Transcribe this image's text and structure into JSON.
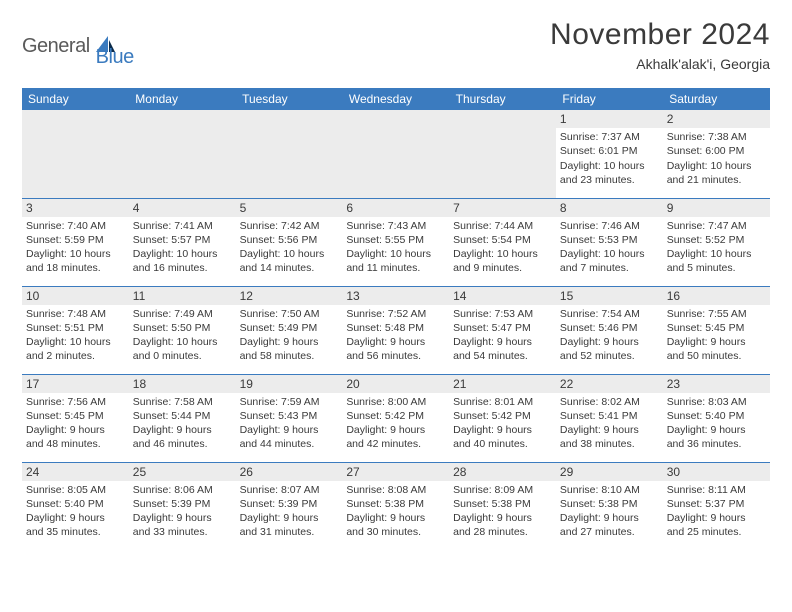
{
  "logo": {
    "text_general": "General",
    "text_blue": "Blue"
  },
  "header": {
    "title": "November 2024",
    "location": "Akhalk'alak'i, Georgia"
  },
  "colors": {
    "header_bg": "#3b7bbf",
    "header_text": "#ffffff",
    "daybar_bg": "#ececec",
    "text": "#3a3a3a",
    "rule": "#3b7bbf"
  },
  "daysOfWeek": [
    "Sunday",
    "Monday",
    "Tuesday",
    "Wednesday",
    "Thursday",
    "Friday",
    "Saturday"
  ],
  "weeks": [
    [
      null,
      null,
      null,
      null,
      null,
      {
        "n": "1",
        "sr": "7:37 AM",
        "ss": "6:01 PM",
        "dl": "10 hours and 23 minutes."
      },
      {
        "n": "2",
        "sr": "7:38 AM",
        "ss": "6:00 PM",
        "dl": "10 hours and 21 minutes."
      }
    ],
    [
      {
        "n": "3",
        "sr": "7:40 AM",
        "ss": "5:59 PM",
        "dl": "10 hours and 18 minutes."
      },
      {
        "n": "4",
        "sr": "7:41 AM",
        "ss": "5:57 PM",
        "dl": "10 hours and 16 minutes."
      },
      {
        "n": "5",
        "sr": "7:42 AM",
        "ss": "5:56 PM",
        "dl": "10 hours and 14 minutes."
      },
      {
        "n": "6",
        "sr": "7:43 AM",
        "ss": "5:55 PM",
        "dl": "10 hours and 11 minutes."
      },
      {
        "n": "7",
        "sr": "7:44 AM",
        "ss": "5:54 PM",
        "dl": "10 hours and 9 minutes."
      },
      {
        "n": "8",
        "sr": "7:46 AM",
        "ss": "5:53 PM",
        "dl": "10 hours and 7 minutes."
      },
      {
        "n": "9",
        "sr": "7:47 AM",
        "ss": "5:52 PM",
        "dl": "10 hours and 5 minutes."
      }
    ],
    [
      {
        "n": "10",
        "sr": "7:48 AM",
        "ss": "5:51 PM",
        "dl": "10 hours and 2 minutes."
      },
      {
        "n": "11",
        "sr": "7:49 AM",
        "ss": "5:50 PM",
        "dl": "10 hours and 0 minutes."
      },
      {
        "n": "12",
        "sr": "7:50 AM",
        "ss": "5:49 PM",
        "dl": "9 hours and 58 minutes."
      },
      {
        "n": "13",
        "sr": "7:52 AM",
        "ss": "5:48 PM",
        "dl": "9 hours and 56 minutes."
      },
      {
        "n": "14",
        "sr": "7:53 AM",
        "ss": "5:47 PM",
        "dl": "9 hours and 54 minutes."
      },
      {
        "n": "15",
        "sr": "7:54 AM",
        "ss": "5:46 PM",
        "dl": "9 hours and 52 minutes."
      },
      {
        "n": "16",
        "sr": "7:55 AM",
        "ss": "5:45 PM",
        "dl": "9 hours and 50 minutes."
      }
    ],
    [
      {
        "n": "17",
        "sr": "7:56 AM",
        "ss": "5:45 PM",
        "dl": "9 hours and 48 minutes."
      },
      {
        "n": "18",
        "sr": "7:58 AM",
        "ss": "5:44 PM",
        "dl": "9 hours and 46 minutes."
      },
      {
        "n": "19",
        "sr": "7:59 AM",
        "ss": "5:43 PM",
        "dl": "9 hours and 44 minutes."
      },
      {
        "n": "20",
        "sr": "8:00 AM",
        "ss": "5:42 PM",
        "dl": "9 hours and 42 minutes."
      },
      {
        "n": "21",
        "sr": "8:01 AM",
        "ss": "5:42 PM",
        "dl": "9 hours and 40 minutes."
      },
      {
        "n": "22",
        "sr": "8:02 AM",
        "ss": "5:41 PM",
        "dl": "9 hours and 38 minutes."
      },
      {
        "n": "23",
        "sr": "8:03 AM",
        "ss": "5:40 PM",
        "dl": "9 hours and 36 minutes."
      }
    ],
    [
      {
        "n": "24",
        "sr": "8:05 AM",
        "ss": "5:40 PM",
        "dl": "9 hours and 35 minutes."
      },
      {
        "n": "25",
        "sr": "8:06 AM",
        "ss": "5:39 PM",
        "dl": "9 hours and 33 minutes."
      },
      {
        "n": "26",
        "sr": "8:07 AM",
        "ss": "5:39 PM",
        "dl": "9 hours and 31 minutes."
      },
      {
        "n": "27",
        "sr": "8:08 AM",
        "ss": "5:38 PM",
        "dl": "9 hours and 30 minutes."
      },
      {
        "n": "28",
        "sr": "8:09 AM",
        "ss": "5:38 PM",
        "dl": "9 hours and 28 minutes."
      },
      {
        "n": "29",
        "sr": "8:10 AM",
        "ss": "5:38 PM",
        "dl": "9 hours and 27 minutes."
      },
      {
        "n": "30",
        "sr": "8:11 AM",
        "ss": "5:37 PM",
        "dl": "9 hours and 25 minutes."
      }
    ]
  ],
  "labels": {
    "sunrise": "Sunrise: ",
    "sunset": "Sunset: ",
    "daylight": "Daylight: "
  }
}
